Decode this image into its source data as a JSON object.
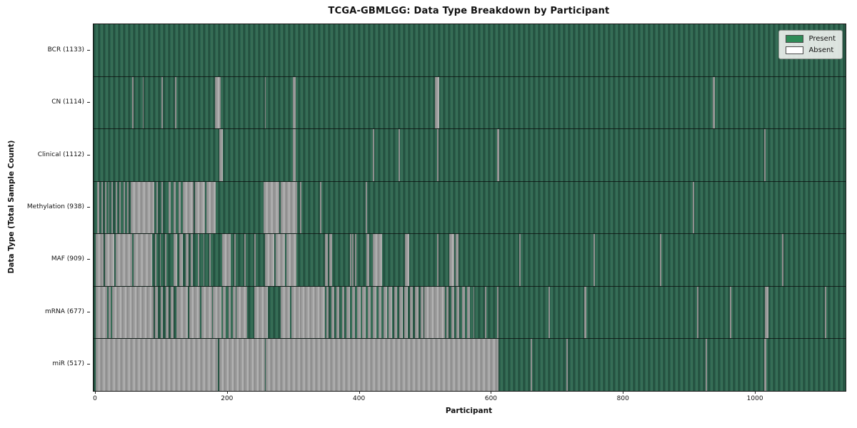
{
  "chart_data": {
    "type": "heatmap",
    "title": "TCGA-GBMLGG: Data Type Breakdown by Participant",
    "xlabel": "Participant",
    "ylabel": "Data Type (Total Sample Count)",
    "n_participants": 1133,
    "x_ticks": [
      0,
      200,
      400,
      600,
      800,
      1000
    ],
    "legend_position": "upper right",
    "grid": false,
    "legend": [
      {
        "label": "Present",
        "color": "#2e8b57"
      },
      {
        "label": "Absent",
        "color": "#ffffff"
      }
    ],
    "colors": {
      "present_fill": "#2e8b57",
      "absent_fill": "#ffffff",
      "bar_edge": "#555555"
    },
    "rows": [
      {
        "name": "BCR",
        "count": 1133,
        "label": "BCR (1133)",
        "absent_runs": []
      },
      {
        "name": "CN",
        "count": 1114,
        "label": "CN (1114)",
        "absent_runs": [
          [
            55,
            57
          ],
          [
            71,
            73
          ],
          [
            100,
            102
          ],
          [
            120,
            122
          ],
          [
            181,
            189
          ],
          [
            256,
            258
          ],
          [
            299,
            303
          ],
          [
            514,
            520
          ],
          [
            935,
            938
          ]
        ]
      },
      {
        "name": "Clinical",
        "count": 1112,
        "label": "Clinical (1112)",
        "absent_runs": [
          [
            187,
            193
          ],
          [
            299,
            303
          ],
          [
            420,
            422
          ],
          [
            459,
            461
          ],
          [
            517,
            519
          ],
          [
            608,
            611
          ],
          [
            1013,
            1015
          ]
        ]
      },
      {
        "name": "Methylation",
        "count": 938,
        "label": "Methylation (938)",
        "absent_runs": [
          [
            2,
            5
          ],
          [
            9,
            11
          ],
          [
            14,
            16
          ],
          [
            19,
            21
          ],
          [
            24,
            26
          ],
          [
            30,
            32
          ],
          [
            36,
            38
          ],
          [
            42,
            44
          ],
          [
            48,
            50
          ],
          [
            53,
            89
          ],
          [
            92,
            94
          ],
          [
            100,
            102
          ],
          [
            110,
            114
          ],
          [
            118,
            121
          ],
          [
            126,
            129
          ],
          [
            132,
            148
          ],
          [
            150,
            166
          ],
          [
            168,
            182
          ],
          [
            254,
            278
          ],
          [
            280,
            305
          ],
          [
            310,
            312
          ],
          [
            340,
            342
          ],
          [
            409,
            411
          ],
          [
            905,
            907
          ]
        ]
      },
      {
        "name": "MAF",
        "count": 909,
        "label": "MAF (909)",
        "absent_runs": [
          [
            0,
            12
          ],
          [
            14,
            28
          ],
          [
            30,
            55
          ],
          [
            57,
            86
          ],
          [
            90,
            92
          ],
          [
            97,
            99
          ],
          [
            105,
            107
          ],
          [
            118,
            123
          ],
          [
            127,
            132
          ],
          [
            136,
            141
          ],
          [
            144,
            147
          ],
          [
            155,
            157
          ],
          [
            163,
            165
          ],
          [
            172,
            174
          ],
          [
            191,
            204
          ],
          [
            210,
            212
          ],
          [
            225,
            227
          ],
          [
            240,
            242
          ],
          [
            256,
            271
          ],
          [
            273,
            287
          ],
          [
            289,
            304
          ],
          [
            347,
            352
          ],
          [
            354,
            358
          ],
          [
            385,
            387
          ],
          [
            389,
            391
          ],
          [
            393,
            395
          ],
          [
            410,
            415
          ],
          [
            420,
            434
          ],
          [
            469,
            475
          ],
          [
            517,
            519
          ],
          [
            536,
            543
          ],
          [
            545,
            550
          ],
          [
            642,
            644
          ],
          [
            754,
            756
          ],
          [
            855,
            857
          ],
          [
            1040,
            1042
          ]
        ]
      },
      {
        "name": "mRNA",
        "count": 677,
        "label": "mRNA (677)",
        "absent_runs": [
          [
            0,
            17
          ],
          [
            19,
            23
          ],
          [
            25,
            88
          ],
          [
            90,
            94
          ],
          [
            98,
            102
          ],
          [
            106,
            110
          ],
          [
            114,
            118
          ],
          [
            122,
            126
          ],
          [
            126,
            140
          ],
          [
            142,
            158
          ],
          [
            160,
            176
          ],
          [
            178,
            191
          ],
          [
            193,
            197
          ],
          [
            201,
            205
          ],
          [
            208,
            212
          ],
          [
            213,
            229
          ],
          [
            240,
            261
          ],
          [
            280,
            294
          ],
          [
            296,
            310
          ],
          [
            310,
            347
          ],
          [
            349,
            353
          ],
          [
            357,
            361
          ],
          [
            365,
            369
          ],
          [
            373,
            377
          ],
          [
            380,
            385
          ],
          [
            388,
            393
          ],
          [
            396,
            401
          ],
          [
            404,
            409
          ],
          [
            412,
            417
          ],
          [
            420,
            425
          ],
          [
            428,
            433
          ],
          [
            436,
            441
          ],
          [
            444,
            449
          ],
          [
            452,
            457
          ],
          [
            460,
            465
          ],
          [
            468,
            473
          ],
          [
            476,
            481
          ],
          [
            484,
            489
          ],
          [
            492,
            497
          ],
          [
            498,
            529
          ],
          [
            531,
            535
          ],
          [
            539,
            543
          ],
          [
            547,
            551
          ],
          [
            555,
            559
          ],
          [
            563,
            567
          ],
          [
            572,
            574
          ],
          [
            590,
            592
          ],
          [
            608,
            610
          ],
          [
            686,
            688
          ],
          [
            740,
            743
          ],
          [
            911,
            913
          ],
          [
            961,
            963
          ],
          [
            1014,
            1019
          ],
          [
            1105,
            1107
          ]
        ]
      },
      {
        "name": "miR",
        "count": 517,
        "label": "miR (517)",
        "absent_runs": [
          [
            0,
            185
          ],
          [
            187,
            256
          ],
          [
            258,
            610
          ],
          [
            659,
            661
          ],
          [
            713,
            715
          ],
          [
            924,
            926
          ],
          [
            1013,
            1016
          ]
        ]
      }
    ]
  }
}
